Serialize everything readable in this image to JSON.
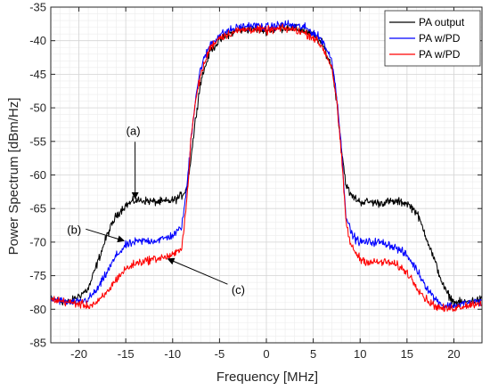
{
  "chart_data": {
    "type": "line",
    "xlabel": "Frequency [MHz]",
    "ylabel": "Power Spectrum [dBm/Hz]",
    "xlim": [
      -23,
      23
    ],
    "ylim": [
      -85,
      -35
    ],
    "xticks": [
      -20,
      -15,
      -10,
      -5,
      0,
      5,
      10,
      15,
      20
    ],
    "yticks": [
      -85,
      -80,
      -75,
      -70,
      -65,
      -60,
      -55,
      -50,
      -45,
      -40,
      -35
    ],
    "grid": "major and minor",
    "legend_position": "top-right",
    "series": [
      {
        "name": "PA output",
        "color": "#000000",
        "x": [
          -23,
          -21,
          -19,
          -18,
          -17,
          -16,
          -15,
          -14,
          -13,
          -12,
          -11,
          -10,
          -9.5,
          -9,
          -8.5,
          -8,
          -7.5,
          -7,
          -6,
          -5,
          -4,
          -3,
          -2,
          -1,
          0,
          1,
          2,
          3,
          4,
          5,
          6,
          7,
          7.5,
          8,
          8.5,
          9,
          9.5,
          10,
          11,
          12,
          13,
          14,
          15,
          16,
          17,
          18,
          19,
          20,
          21,
          23
        ],
        "y": [
          -78.5,
          -79,
          -77,
          -73,
          -69,
          -66,
          -64.5,
          -63.8,
          -63.8,
          -64,
          -64,
          -63.8,
          -63.5,
          -63,
          -62,
          -57,
          -51,
          -46,
          -41.5,
          -40,
          -39,
          -38.5,
          -38.3,
          -38.3,
          -38.5,
          -38.3,
          -38,
          -38.2,
          -38.5,
          -39.2,
          -40.5,
          -44,
          -49,
          -56,
          -61.5,
          -63,
          -63.5,
          -64,
          -64,
          -64.2,
          -64,
          -64,
          -64.2,
          -65.5,
          -69,
          -73,
          -77,
          -79,
          -79,
          -78.5
        ],
        "noise": 0.6
      },
      {
        "name": "PA w/PD",
        "color": "#0000ff",
        "x": [
          -23,
          -21,
          -20,
          -19,
          -18,
          -17,
          -16,
          -15,
          -14,
          -13,
          -12,
          -11,
          -10,
          -9.5,
          -9,
          -8.5,
          -8,
          -7.5,
          -7,
          -6,
          -5,
          -4,
          -3,
          -2,
          -1,
          0,
          1,
          2,
          3,
          4,
          5,
          6,
          7,
          7.5,
          8,
          8.5,
          9,
          9.5,
          10,
          11,
          12,
          13,
          14,
          15,
          16,
          17,
          18,
          19,
          20,
          21,
          23
        ],
        "y": [
          -78.5,
          -79,
          -79,
          -78.5,
          -77,
          -74.5,
          -72,
          -70.5,
          -70,
          -69.8,
          -69.8,
          -69.5,
          -69,
          -68.5,
          -67.5,
          -62,
          -54,
          -48,
          -44,
          -40.5,
          -39.2,
          -38.5,
          -38,
          -37.8,
          -37.8,
          -38,
          -37.8,
          -37.5,
          -37.8,
          -38,
          -38.8,
          -40,
          -43,
          -48,
          -56,
          -66,
          -68.5,
          -69.5,
          -70,
          -70,
          -70,
          -70.3,
          -71,
          -72,
          -74,
          -76.5,
          -78.5,
          -79.5,
          -79.5,
          -79.2,
          -78.8
        ],
        "noise": 0.6
      },
      {
        "name": "PA w/PD",
        "color": "#ff0000",
        "x": [
          -23,
          -21,
          -20,
          -19,
          -18,
          -17,
          -16,
          -15,
          -14,
          -13,
          -12,
          -11,
          -10,
          -9.5,
          -9,
          -8.5,
          -8,
          -7.5,
          -7,
          -6,
          -5,
          -4,
          -3,
          -2,
          -1,
          0,
          1,
          2,
          3,
          4,
          5,
          6,
          7,
          7.5,
          8,
          8.5,
          9,
          9.5,
          10,
          11,
          12,
          13,
          14,
          15,
          16,
          17,
          18,
          19,
          20,
          21,
          23
        ],
        "y": [
          -78.5,
          -79,
          -79.2,
          -79.5,
          -79,
          -77.5,
          -75.5,
          -74,
          -73.2,
          -72.8,
          -72.5,
          -72.3,
          -72,
          -71.5,
          -70.5,
          -64,
          -54,
          -48.5,
          -45,
          -41,
          -39.5,
          -39,
          -38.5,
          -38.3,
          -38.3,
          -38.5,
          -38.3,
          -38.2,
          -38.4,
          -38.8,
          -39.5,
          -41,
          -44,
          -49,
          -57,
          -67,
          -70.5,
          -71.5,
          -72.5,
          -73,
          -73,
          -73,
          -73.5,
          -74.5,
          -76.5,
          -78.5,
          -79.5,
          -80,
          -79.8,
          -79.5,
          -79
        ],
        "noise": 0.6
      }
    ],
    "annotations": [
      {
        "text": "(a)",
        "label_xy": [
          -14.2,
          -54
        ],
        "arrow_to": [
          -14,
          -63.5
        ]
      },
      {
        "text": "(b)",
        "label_xy": [
          -20.5,
          -68.2
        ],
        "arrow_to": [
          -15.2,
          -69.8
        ]
      },
      {
        "text": "(c)",
        "label_xy": [
          -3,
          -77.2
        ],
        "arrow_to": [
          -10.5,
          -72.5
        ]
      }
    ]
  }
}
